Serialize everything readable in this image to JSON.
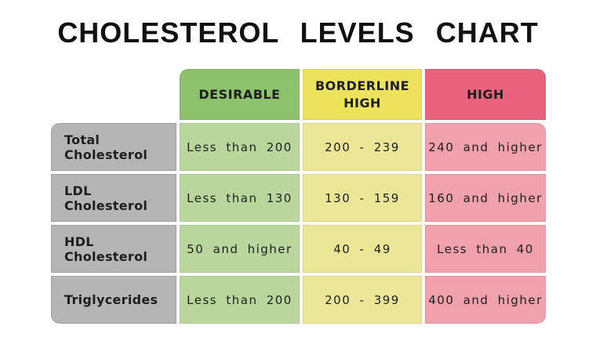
{
  "chart_data": {
    "type": "table",
    "title": "CHOLESTEROL LEVELS CHART",
    "columns": [
      "DESIRABLE",
      "BORDERLINE HIGH",
      "HIGH"
    ],
    "rows": [
      {
        "label": "Total Cholesterol",
        "values": [
          "Less than 200",
          "200 - 239",
          "240 and higher"
        ]
      },
      {
        "label": "LDL Cholesterol",
        "values": [
          "Less than 130",
          "130 - 159",
          "160 and higher"
        ]
      },
      {
        "label": "HDL Cholesterol",
        "values": [
          "50 and higher",
          "40 - 49",
          "Less than 40"
        ]
      },
      {
        "label": "Triglycerides",
        "values": [
          "Less than 200",
          "200 - 399",
          "400 and higher"
        ]
      }
    ]
  },
  "colors": {
    "background": "#ffffff",
    "text": "#1e1e1e",
    "header_desirable": "#8dc26c",
    "cell_desirable": "#b9d79c",
    "header_borderline": "#ede25b",
    "cell_borderline": "#ece797",
    "header_high": "#e9617c",
    "cell_high": "#f0a1ab",
    "row_label_bg": "#b5b5b5"
  }
}
